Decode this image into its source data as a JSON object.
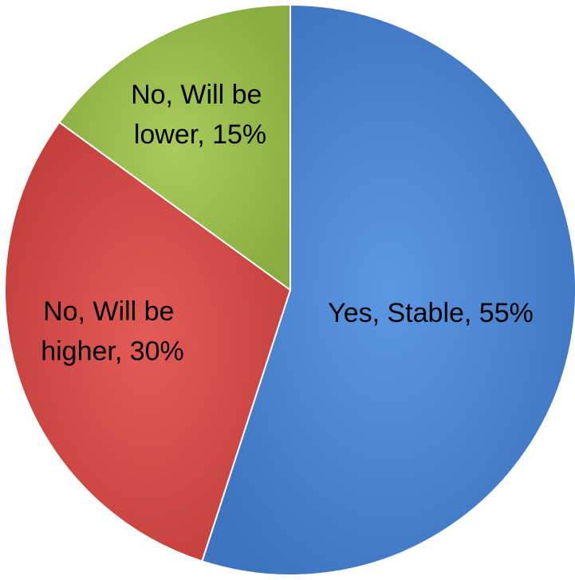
{
  "chart_data": {
    "type": "pie",
    "title": "",
    "slices": [
      {
        "category": "Yes, Stable",
        "value": 55,
        "label_lines": [
          "Yes, Stable, 55%"
        ],
        "color": "#4A86D4"
      },
      {
        "category": "No, Will be higher",
        "value": 30,
        "label_lines": [
          "No, Will be",
          "higher, 30%"
        ],
        "color": "#D44C48"
      },
      {
        "category": "No, Will be lower",
        "value": 15,
        "label_lines": [
          "No, Will be",
          "lower, 15%"
        ],
        "color": "#9ABD4E"
      }
    ],
    "start_angle": "12 o'clock",
    "direction": "clockwise",
    "legend": "none"
  }
}
